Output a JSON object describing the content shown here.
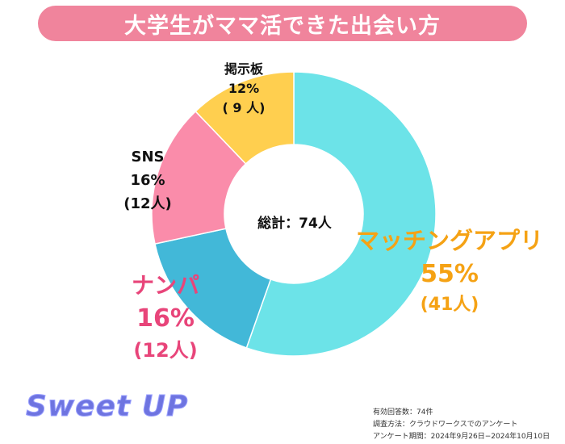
{
  "title": "大学生がママ活できた出会い方",
  "center_label": "総計：74人",
  "colors": {
    "title_bg": "#f0849c",
    "matching": "#6ce3e8",
    "nanpa": "#42b8d8",
    "sns": "#fa8caa",
    "board": "#ffcf4f"
  },
  "chart_data": {
    "type": "pie",
    "style": "donut",
    "total": 74,
    "slices": [
      {
        "name": "マッチングアプリ",
        "value": 41,
        "percent": "55%",
        "count": "(41人)",
        "color": "#6ce3e8"
      },
      {
        "name": "ナンパ",
        "value": 12,
        "percent": "16%",
        "count": "(12人)",
        "color": "#42b8d8"
      },
      {
        "name": "SNS",
        "value": 12,
        "percent": "16%",
        "count": "(12人)",
        "color": "#fa8caa"
      },
      {
        "name": "掲示板",
        "value": 9,
        "percent": "12%",
        "count": "( 9 人)",
        "color": "#ffcf4f"
      }
    ]
  },
  "logo_text": "Sweet UP",
  "notes": [
    "有効回答数：74件",
    "調査方法：クラウドワークスでのアンケート",
    "アンケート期間：2024年9月26日−2024年10月10日"
  ]
}
